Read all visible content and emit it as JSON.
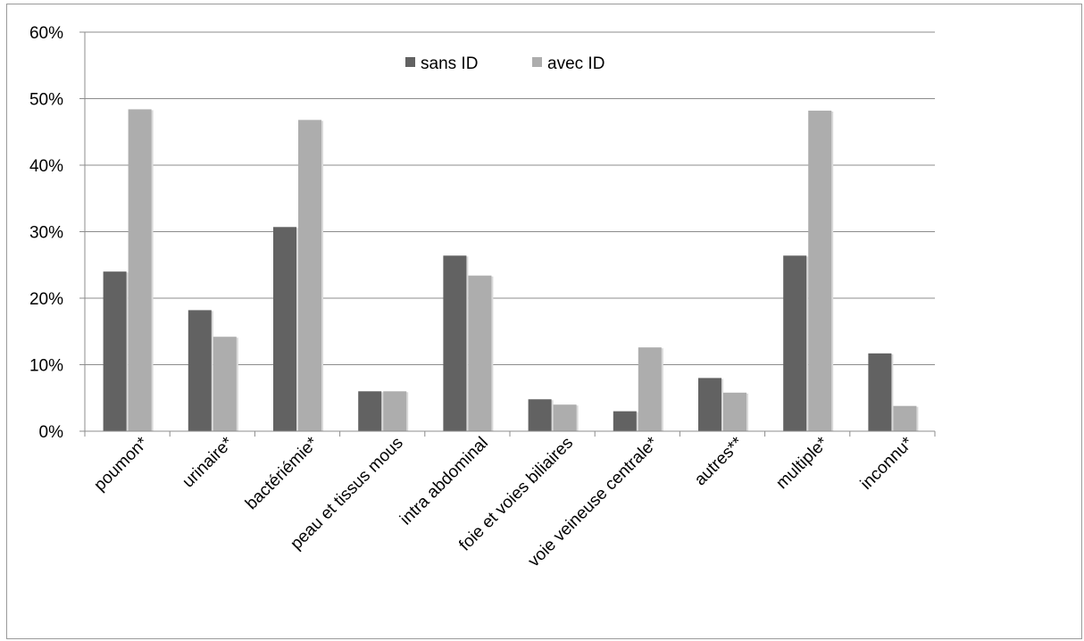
{
  "chart_data": {
    "type": "bar",
    "categories": [
      "poumon*",
      "urinaire*",
      "bactériémie*",
      "peau et tissus mous",
      "intra abdominal",
      "foie et voies biliaires",
      "voie veineuse centrale*",
      "autres**",
      "multiple*",
      "inconnu*"
    ],
    "series": [
      {
        "name": "sans ID",
        "color": "#626262",
        "values": [
          24,
          18.2,
          30.7,
          6,
          26.4,
          4.8,
          3,
          8,
          26.4,
          11.7
        ]
      },
      {
        "name": "avec ID",
        "color": "#adadad",
        "values": [
          48.4,
          14.2,
          46.8,
          6,
          23.4,
          4,
          12.6,
          5.8,
          48.2,
          3.8
        ]
      }
    ],
    "ylim": [
      0,
      60
    ],
    "yticks": [
      "0%",
      "10%",
      "20%",
      "30%",
      "40%",
      "50%",
      "60%"
    ],
    "grid": true,
    "legend": "top-center"
  }
}
